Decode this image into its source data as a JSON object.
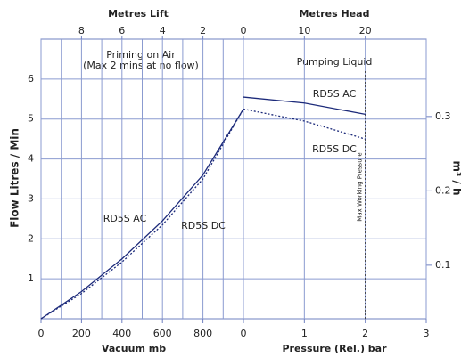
{
  "chart_data": [
    {
      "type": "line",
      "ylabel": "Flow Litres / Min",
      "xlabel": "Vacuum mb",
      "x2label": "Metres Lift",
      "annotations": [
        "Priming on Air",
        "(Max 2 mins at no flow)"
      ],
      "x": [
        0,
        200,
        400,
        600,
        800,
        1000
      ],
      "xlim": [
        0,
        1000
      ],
      "xticks": [
        0,
        200,
        400,
        600,
        800
      ],
      "minor_xticks": [
        100,
        300,
        500,
        700,
        900
      ],
      "x2lim": [
        10,
        0
      ],
      "x2ticks": [
        8,
        6,
        4,
        2
      ],
      "ylim": [
        0,
        7
      ],
      "yticks": [
        1,
        2,
        3,
        4,
        5,
        6
      ],
      "grid": true,
      "series": [
        {
          "name": "RD5S AC",
          "color": "#1c2a7a",
          "dash": "solid",
          "values": [
            0,
            0.68,
            1.5,
            2.45,
            3.6,
            5.25
          ]
        },
        {
          "name": "RD5S DC",
          "color": "#1c2a7a",
          "dash": "dotted",
          "values": [
            0,
            0.63,
            1.42,
            2.35,
            3.5,
            5.25
          ]
        }
      ]
    },
    {
      "type": "line",
      "xlabel": "Pressure (Rel.) bar",
      "x2label": "Metres Head",
      "y2label": "m³ / h",
      "annotations": [
        "Pumping Liquid"
      ],
      "marker": {
        "text": "Max Working Pressure",
        "x": 2
      },
      "x": [
        0,
        1,
        2
      ],
      "xlim": [
        0,
        3
      ],
      "xticks": [
        0,
        1,
        2,
        3
      ],
      "x2lim": [
        0,
        30
      ],
      "x2ticks": [
        0,
        10,
        20
      ],
      "ylim": [
        0,
        7
      ],
      "y2lim": [
        0.028,
        0.404
      ],
      "y2ticks": [
        0.1,
        0.2,
        0.3
      ],
      "grid": true,
      "series": [
        {
          "name": "RD5S AC",
          "color": "#1c2a7a",
          "dash": "solid",
          "values": [
            5.55,
            5.4,
            5.12
          ]
        },
        {
          "name": "RD5S DC",
          "color": "#1c2a7a",
          "dash": "dotted",
          "values": [
            5.25,
            4.95,
            4.5
          ]
        }
      ]
    }
  ]
}
